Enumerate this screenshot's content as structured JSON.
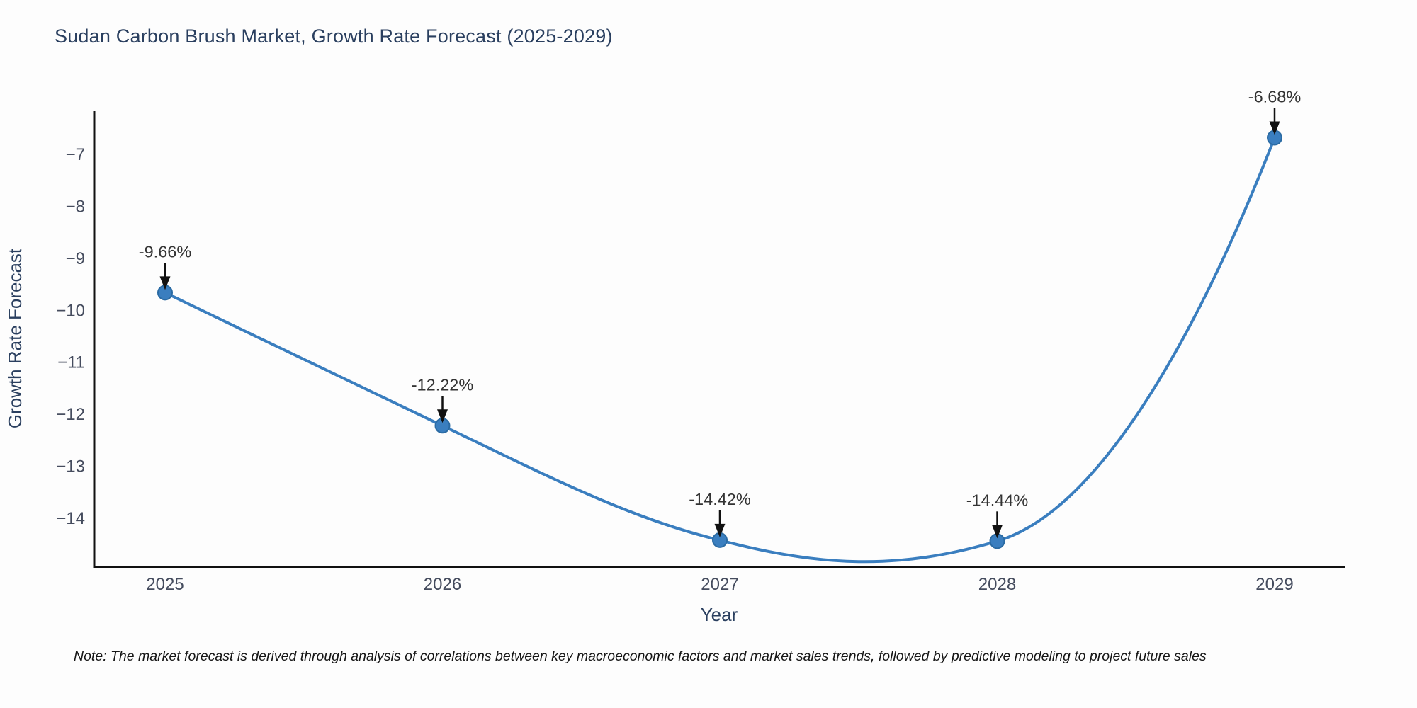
{
  "header": {
    "title": "Sudan Carbon Brush Market, Growth Rate Forecast (2025-2029)"
  },
  "chart_data": {
    "type": "line",
    "curve": "spline",
    "title": "Sudan Carbon Brush Market, Growth Rate Forecast (2025-2029)",
    "xlabel": "Year",
    "ylabel": "Growth Rate Forecast",
    "x": [
      2025,
      2026,
      2027,
      2028,
      2029
    ],
    "values": [
      -9.66,
      -12.22,
      -14.42,
      -14.44,
      -6.68
    ],
    "annotations": [
      "-9.66%",
      "-12.22%",
      "-14.42%",
      "-14.44%",
      "-6.68%"
    ],
    "x_tick_labels": [
      "2025",
      "2026",
      "2027",
      "2028",
      "2029"
    ],
    "y_ticks": [
      -7,
      -8,
      -9,
      -10,
      -11,
      -12,
      -13,
      -14
    ],
    "y_tick_labels": [
      "−7",
      "−8",
      "−9",
      "−10",
      "−11",
      "−12",
      "−13",
      "−14"
    ],
    "ylim": [
      -14.94,
      -6.17
    ],
    "grid": false,
    "legend": "none",
    "line_color": "#3a7ebf",
    "marker_color": "#3a7ebf",
    "annotation_color": "#333333",
    "axis_color": "#111111"
  },
  "footnote": {
    "text": "Note: The market forecast is derived through analysis of correlations between key macroeconomic factors and market sales trends, followed by predictive modeling to project future sales"
  }
}
